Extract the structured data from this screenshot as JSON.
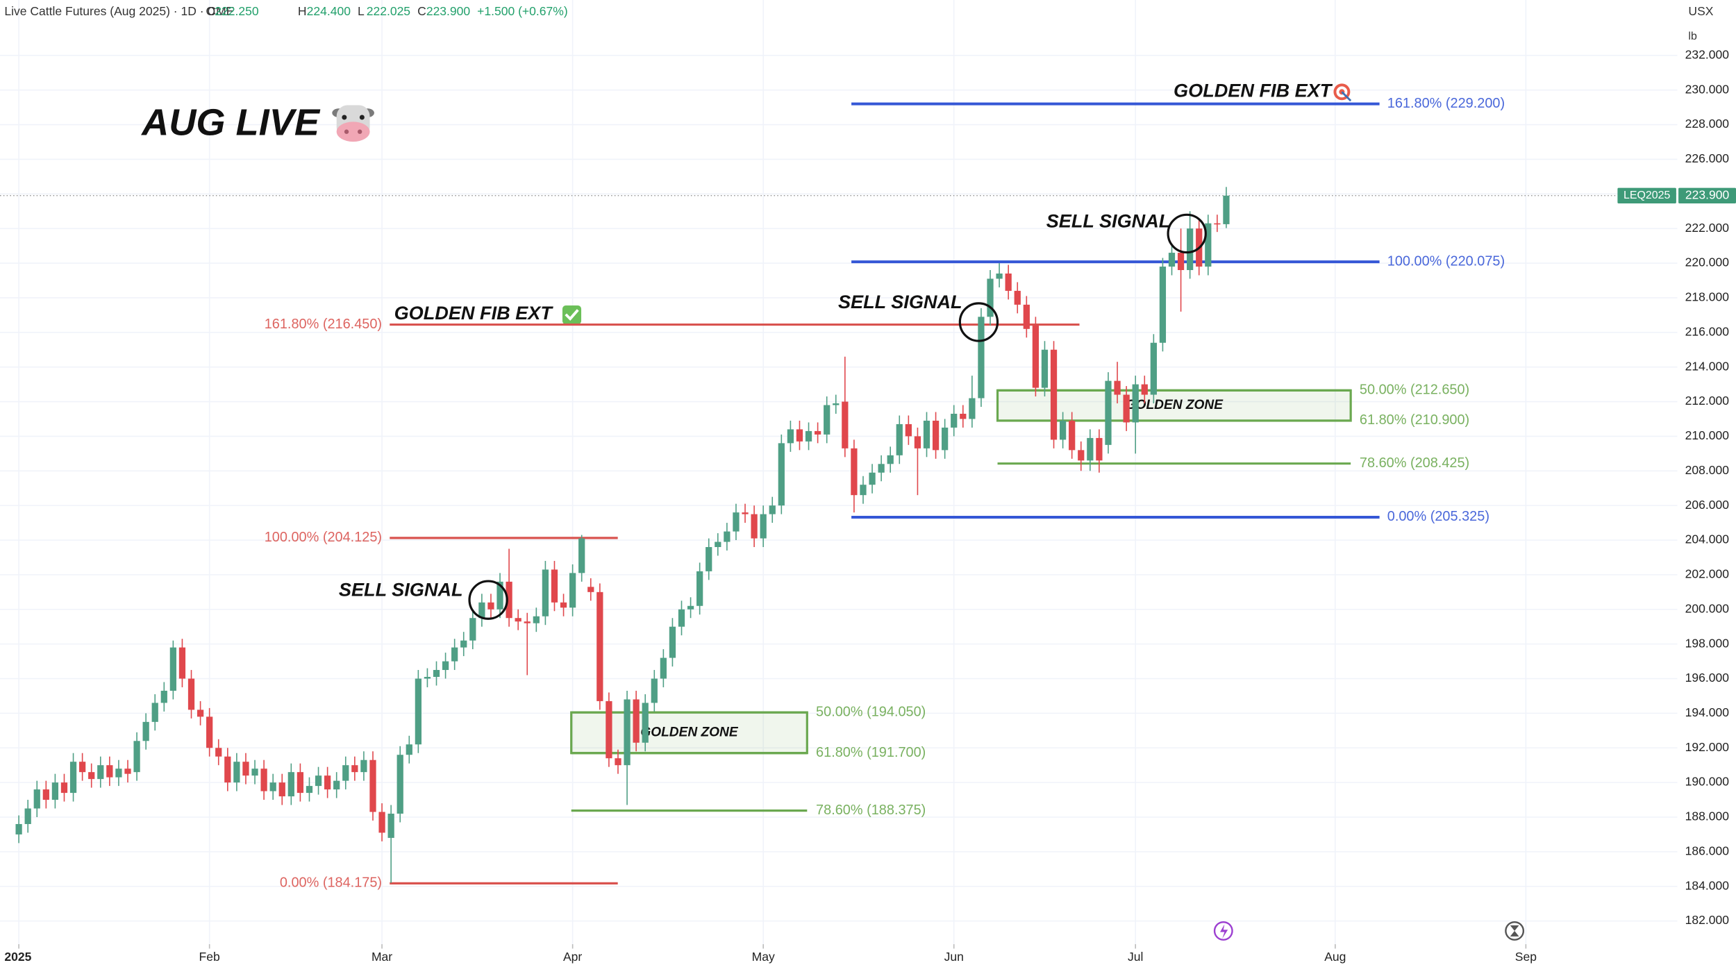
{
  "header": {
    "title": "Live Cattle Futures (Aug 2025) · 1D · CME",
    "ohlc": [
      {
        "key": "O",
        "value": "222.250"
      },
      {
        "key": "H",
        "value": "224.400"
      },
      {
        "key": "L",
        "value": "222.025"
      },
      {
        "key": "C",
        "value": "223.900"
      }
    ],
    "change": "+1.500 (+0.67%)"
  },
  "chart_data": {
    "type": "candlestick",
    "title": "AUG LIVE",
    "currency": "USX",
    "unit": "lb",
    "categories": [
      "2025",
      null,
      null,
      null,
      null,
      null,
      null,
      null,
      null,
      null,
      null,
      null,
      null,
      null,
      null,
      null,
      null,
      null,
      null,
      null,
      null,
      "Feb",
      null,
      null,
      null,
      null,
      null,
      null,
      null,
      null,
      null,
      null,
      null,
      null,
      null,
      null,
      null,
      null,
      null,
      null,
      "Mar",
      null,
      null,
      null,
      null,
      null,
      null,
      null,
      null,
      null,
      null,
      null,
      null,
      null,
      null,
      null,
      null,
      null,
      null,
      null,
      null,
      "Apr",
      null,
      null,
      null,
      null,
      null,
      null,
      null,
      null,
      null,
      null,
      null,
      null,
      null,
      null,
      null,
      null,
      null,
      null,
      null,
      null,
      "May",
      null,
      null,
      null,
      null,
      null,
      null,
      null,
      null,
      null,
      null,
      null,
      null,
      null,
      null,
      null,
      null,
      null,
      null,
      null,
      null,
      "Jun",
      null,
      null,
      null,
      null,
      null,
      null,
      null,
      null,
      null,
      null,
      null,
      null,
      null,
      null,
      null,
      null,
      null,
      null,
      null,
      "Jul",
      null,
      null,
      null,
      null,
      null,
      null,
      null,
      null,
      null,
      null,
      null,
      null,
      null,
      null,
      null,
      null,
      null,
      null,
      null,
      null,
      null,
      "Aug",
      null,
      null,
      null,
      null,
      null,
      null,
      null,
      null,
      null,
      null,
      null,
      null,
      null,
      null,
      null,
      null,
      null,
      null,
      null,
      null,
      "Sep"
    ],
    "series": [
      {
        "name": "LEQ2025",
        "open": [
          187.0,
          187.6,
          188.5,
          189.6,
          189.0,
          190.0,
          189.4,
          191.2,
          190.6,
          190.2,
          191.0,
          190.3,
          190.8,
          190.6,
          192.4,
          193.5,
          194.6,
          195.3,
          197.8,
          196.0,
          194.2,
          193.8,
          192.0,
          191.5,
          190.0,
          191.2,
          190.4,
          190.8,
          189.5,
          190.0,
          189.2,
          190.6,
          189.4,
          189.8,
          190.4,
          189.6,
          190.1,
          191.0,
          190.6,
          191.3,
          188.3,
          186.8,
          188.2,
          191.6,
          192.2,
          196.0,
          196.1,
          196.5,
          197.0,
          197.8,
          198.2,
          199.5,
          200.4,
          200.0,
          201.6,
          199.5,
          199.3,
          199.2,
          199.6,
          202.3,
          200.4,
          200.1,
          202.1,
          201.3,
          201.0,
          194.7,
          191.4,
          191.0,
          194.8,
          192.3,
          194.6,
          196.0,
          197.2,
          199.0,
          200.0,
          200.2,
          202.2,
          203.6,
          203.9,
          204.5,
          205.6,
          205.5,
          204.1,
          205.5,
          206.0,
          209.6,
          210.4,
          209.7,
          210.3,
          210.1,
          211.8,
          212.0,
          209.3,
          206.6,
          207.2,
          207.9,
          208.4,
          208.9,
          210.7,
          210.0,
          209.3,
          210.9,
          209.2,
          210.5,
          211.3,
          211.0,
          212.2,
          216.9,
          219.1,
          219.4,
          218.4,
          217.6,
          216.4,
          212.8,
          215.0,
          209.8,
          210.9,
          209.2,
          208.6,
          209.9,
          209.5,
          213.2,
          212.4,
          210.8,
          213.0,
          212.4,
          215.4,
          219.8,
          220.6,
          219.6,
          222.0,
          219.8,
          222.3,
          222.25,
          null,
          null,
          null,
          null,
          null,
          null,
          null,
          null,
          null,
          null,
          null,
          null,
          null,
          null,
          null,
          null,
          null,
          null,
          null,
          null,
          null,
          null,
          null,
          null,
          null,
          null,
          null,
          null,
          null,
          null,
          null,
          null,
          null
        ],
        "high": [
          188.1,
          189.0,
          190.1,
          190.1,
          190.5,
          190.5,
          191.7,
          191.7,
          191.1,
          191.5,
          191.5,
          191.3,
          191.3,
          192.9,
          194.0,
          195.1,
          195.8,
          198.2,
          198.3,
          196.5,
          194.7,
          194.3,
          192.5,
          192.0,
          191.7,
          191.7,
          191.3,
          191.3,
          190.5,
          190.5,
          191.1,
          191.1,
          190.3,
          190.9,
          190.9,
          190.6,
          191.5,
          191.5,
          191.8,
          191.8,
          188.8,
          188.7,
          192.1,
          192.7,
          196.5,
          196.6,
          197.0,
          197.5,
          198.3,
          198.7,
          200.0,
          200.9,
          200.9,
          202.1,
          203.5,
          200.0,
          199.8,
          200.1,
          202.8,
          202.8,
          200.9,
          202.6,
          204.3,
          201.8,
          201.5,
          195.2,
          191.9,
          195.3,
          195.3,
          195.1,
          196.5,
          197.7,
          199.5,
          200.5,
          200.7,
          202.7,
          204.1,
          204.4,
          205.0,
          206.1,
          206.1,
          206.0,
          206.0,
          206.5,
          210.1,
          210.9,
          210.9,
          210.8,
          210.8,
          212.3,
          212.4,
          214.6,
          209.8,
          207.7,
          208.4,
          208.9,
          209.4,
          211.2,
          211.2,
          210.5,
          211.4,
          211.4,
          211.0,
          211.8,
          211.8,
          213.5,
          217.4,
          219.6,
          220.0,
          219.9,
          218.9,
          218.1,
          216.9,
          215.5,
          215.5,
          211.4,
          211.4,
          209.7,
          210.4,
          210.4,
          213.7,
          214.3,
          212.9,
          213.5,
          213.5,
          215.9,
          220.3,
          221.1,
          222.0,
          223.0,
          222.5,
          222.8,
          222.8,
          224.4,
          null,
          null,
          null,
          null,
          null,
          null,
          null,
          null,
          null,
          null,
          null,
          null,
          null,
          null,
          null,
          null,
          null,
          null,
          null,
          null,
          null,
          null,
          null,
          null,
          null,
          null,
          null,
          null,
          null,
          null,
          null,
          null,
          null
        ],
        "low": [
          186.5,
          187.1,
          188.0,
          188.5,
          188.5,
          188.9,
          188.9,
          190.1,
          189.7,
          189.7,
          189.8,
          189.8,
          190.0,
          190.1,
          191.9,
          193.0,
          194.1,
          194.8,
          195.5,
          193.7,
          193.3,
          191.5,
          191.0,
          189.5,
          189.5,
          189.9,
          189.9,
          189.0,
          189.0,
          188.7,
          188.7,
          188.9,
          188.9,
          189.3,
          189.1,
          189.1,
          189.6,
          190.1,
          190.1,
          187.8,
          186.6,
          184.2,
          187.7,
          191.1,
          191.7,
          195.5,
          195.6,
          196.0,
          196.5,
          197.3,
          197.7,
          199.0,
          199.5,
          199.5,
          199.0,
          198.8,
          196.2,
          198.7,
          199.1,
          199.9,
          199.6,
          199.6,
          201.6,
          200.5,
          194.2,
          190.9,
          190.5,
          188.7,
          191.8,
          191.8,
          194.1,
          195.5,
          196.7,
          198.5,
          199.5,
          199.7,
          201.7,
          203.1,
          203.4,
          204.0,
          205.0,
          203.6,
          203.6,
          205.0,
          205.5,
          209.1,
          209.2,
          209.2,
          209.6,
          209.6,
          211.3,
          208.8,
          205.6,
          206.1,
          206.7,
          207.4,
          207.9,
          208.4,
          209.5,
          206.6,
          208.8,
          208.7,
          208.7,
          210.0,
          210.5,
          210.5,
          211.7,
          216.4,
          218.6,
          217.9,
          217.1,
          215.7,
          212.3,
          212.3,
          209.3,
          209.3,
          208.7,
          208.0,
          208.0,
          207.9,
          209.0,
          211.9,
          210.3,
          209.0,
          211.9,
          211.9,
          214.9,
          219.3,
          217.2,
          219.1,
          219.3,
          219.3,
          221.8,
          222.025,
          null,
          null,
          null,
          null,
          null,
          null,
          null,
          null,
          null,
          null,
          null,
          null,
          null,
          null,
          null,
          null,
          null,
          null,
          null,
          null,
          null,
          null,
          null,
          null,
          null,
          null,
          null,
          null,
          null,
          null,
          null,
          null,
          null
        ],
        "close": [
          187.6,
          188.5,
          189.6,
          189.0,
          190.0,
          189.4,
          191.2,
          190.6,
          190.2,
          191.0,
          190.3,
          190.8,
          190.5,
          192.4,
          193.5,
          194.6,
          195.3,
          197.8,
          196.0,
          194.2,
          193.8,
          192.0,
          191.5,
          190.0,
          191.2,
          190.4,
          190.8,
          189.5,
          190.0,
          189.2,
          190.6,
          189.4,
          189.8,
          190.4,
          189.6,
          190.1,
          191.0,
          190.6,
          191.3,
          188.3,
          187.1,
          188.2,
          191.6,
          192.2,
          196.0,
          196.1,
          196.5,
          197.0,
          197.8,
          198.2,
          199.5,
          200.4,
          200.0,
          201.6,
          199.5,
          199.3,
          199.2,
          199.6,
          202.3,
          200.4,
          200.1,
          202.1,
          204.1,
          201.0,
          194.7,
          191.4,
          191.0,
          194.8,
          192.3,
          194.6,
          196.0,
          197.2,
          199.0,
          200.0,
          200.2,
          202.2,
          203.6,
          203.9,
          204.5,
          205.6,
          205.5,
          204.1,
          205.5,
          206.0,
          209.6,
          210.4,
          209.7,
          210.3,
          210.1,
          211.8,
          211.9,
          209.3,
          206.6,
          207.2,
          207.9,
          208.4,
          208.9,
          210.7,
          210.0,
          209.3,
          210.9,
          209.2,
          210.5,
          211.3,
          211.0,
          212.2,
          216.9,
          219.1,
          219.4,
          218.4,
          217.6,
          216.2,
          212.8,
          215.0,
          209.8,
          210.9,
          209.2,
          208.6,
          209.9,
          208.6,
          213.2,
          212.4,
          210.8,
          213.0,
          212.4,
          215.4,
          219.8,
          220.6,
          219.6,
          222.0,
          219.8,
          222.3,
          222.25,
          223.9,
          null,
          null,
          null,
          null,
          null,
          null,
          null,
          null,
          null,
          null,
          null,
          null,
          null,
          null,
          null,
          null,
          null,
          null,
          null,
          null,
          null,
          null,
          null,
          null,
          null,
          null,
          null,
          null,
          null,
          null,
          null,
          null,
          null
        ]
      }
    ],
    "up_color": "#4f9f85",
    "down_color": "#e0474c",
    "ylim": [
      180.66,
      235.2
    ],
    "yticks": [
      {
        "value": 182,
        "label": "182.000"
      },
      {
        "value": 184,
        "label": "184.000"
      },
      {
        "value": 186,
        "label": "186.000"
      },
      {
        "value": 188,
        "label": "188.000"
      },
      {
        "value": 190,
        "label": "190.000"
      },
      {
        "value": 192,
        "label": "192.000"
      },
      {
        "value": 194,
        "label": "194.000"
      },
      {
        "value": 196,
        "label": "196.000"
      },
      {
        "value": 198,
        "label": "198.000"
      },
      {
        "value": 200,
        "label": "200.000"
      },
      {
        "value": 202,
        "label": "202.000"
      },
      {
        "value": 204,
        "label": "204.000"
      },
      {
        "value": 206,
        "label": "206.000"
      },
      {
        "value": 208,
        "label": "208.000"
      },
      {
        "value": 210,
        "label": "210.000"
      },
      {
        "value": 212,
        "label": "212.000"
      },
      {
        "value": 214,
        "label": "214.000"
      },
      {
        "value": 216,
        "label": "216.000"
      },
      {
        "value": 218,
        "label": "218.000"
      },
      {
        "value": 220,
        "label": "220.000"
      },
      {
        "value": 222,
        "label": "222.000"
      },
      {
        "value": 224,
        "label": "224.000"
      },
      {
        "value": 226,
        "label": "226.000"
      },
      {
        "value": 228,
        "label": "228.000"
      },
      {
        "value": 230,
        "label": "230.000"
      },
      {
        "value": 232,
        "label": "232.000"
      }
    ],
    "grid": true,
    "last_price": {
      "value": 223.9,
      "label": "223.900"
    },
    "fib_levels": [
      {
        "color": "#d9534f",
        "levels": [
          {
            "value": 216.45,
            "label": "161.80% (216.450)"
          },
          {
            "value": 204.125,
            "label": "100.00% (204.125)"
          },
          {
            "value": 184.175,
            "label": "0.00% (184.175)"
          }
        ]
      },
      {
        "color": "#6aa84f",
        "levels": [
          {
            "value": 194.05,
            "label": "50.00% (194.050)"
          },
          {
            "value": 191.7,
            "label": "61.80% (191.700)"
          },
          {
            "value": 188.375,
            "label": "78.60% (188.375)"
          }
        ]
      },
      {
        "color": "#3557d6",
        "levels": [
          {
            "value": 229.2,
            "label": "161.80% (229.200)"
          },
          {
            "value": 220.075,
            "label": "100.00% (220.075)"
          },
          {
            "value": 205.325,
            "label": "0.00% (205.325)"
          }
        ]
      },
      {
        "color": "#6aa84f",
        "levels": [
          {
            "value": 212.65,
            "label": "50.00% (212.650)"
          },
          {
            "value": 210.9,
            "label": "61.80% (210.900)"
          },
          {
            "value": 208.425,
            "label": "78.60% (208.425)"
          }
        ]
      }
    ],
    "zones": [
      "GOLDEN ZONE",
      "GOLDEN ZONE"
    ],
    "annotations": [
      "GOLDEN FIB EXT",
      "GOLDEN FIB EXT",
      "SELL SIGNAL",
      "SELL SIGNAL",
      "SELL SIGNAL"
    ]
  }
}
